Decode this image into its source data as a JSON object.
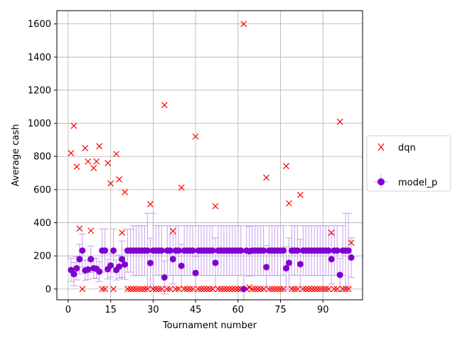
{
  "chart_data": {
    "type": "scatter",
    "xlabel": "Tournament number",
    "ylabel": "Average cash",
    "xlim": [
      -4,
      104
    ],
    "ylim": [
      -65,
      1680
    ],
    "xticks": [
      0,
      15,
      30,
      45,
      60,
      75,
      90
    ],
    "yticks": [
      0,
      200,
      400,
      600,
      800,
      1000,
      1200,
      1400,
      1600
    ],
    "grid": true,
    "legend_position": "outside-right",
    "series": [
      {
        "name": "dqn",
        "marker": "x",
        "color": "#ff0000",
        "points": [
          [
            1,
            820
          ],
          [
            2,
            985
          ],
          [
            3,
            738
          ],
          [
            4,
            365
          ],
          [
            5,
            0
          ],
          [
            6,
            850
          ],
          [
            7,
            770
          ],
          [
            8,
            352
          ],
          [
            9,
            730
          ],
          [
            10,
            770
          ],
          [
            11,
            862
          ],
          [
            12,
            0
          ],
          [
            13,
            0
          ],
          [
            14,
            760
          ],
          [
            15,
            637
          ],
          [
            16,
            0
          ],
          [
            17,
            815
          ],
          [
            18,
            662
          ],
          [
            19,
            340
          ],
          [
            20,
            585
          ],
          [
            21,
            0
          ],
          [
            22,
            0
          ],
          [
            23,
            0
          ],
          [
            24,
            0
          ],
          [
            25,
            0
          ],
          [
            26,
            0
          ],
          [
            27,
            0
          ],
          [
            28,
            0
          ],
          [
            29,
            512
          ],
          [
            30,
            0
          ],
          [
            31,
            0
          ],
          [
            32,
            0
          ],
          [
            33,
            0
          ],
          [
            34,
            1110
          ],
          [
            35,
            0
          ],
          [
            36,
            0
          ],
          [
            37,
            350
          ],
          [
            38,
            0
          ],
          [
            39,
            0
          ],
          [
            40,
            612
          ],
          [
            41,
            0
          ],
          [
            42,
            0
          ],
          [
            43,
            0
          ],
          [
            44,
            0
          ],
          [
            45,
            920
          ],
          [
            46,
            0
          ],
          [
            47,
            0
          ],
          [
            48,
            0
          ],
          [
            49,
            0
          ],
          [
            50,
            0
          ],
          [
            51,
            0
          ],
          [
            52,
            500
          ],
          [
            53,
            0
          ],
          [
            54,
            0
          ],
          [
            55,
            0
          ],
          [
            56,
            0
          ],
          [
            57,
            0
          ],
          [
            58,
            0
          ],
          [
            59,
            0
          ],
          [
            60,
            0
          ],
          [
            61,
            0
          ],
          [
            62,
            1600
          ],
          [
            63,
            0
          ],
          [
            64,
            10
          ],
          [
            65,
            0
          ],
          [
            66,
            0
          ],
          [
            67,
            0
          ],
          [
            68,
            0
          ],
          [
            69,
            0
          ],
          [
            70,
            672
          ],
          [
            71,
            0
          ],
          [
            72,
            0
          ],
          [
            73,
            0
          ],
          [
            74,
            0
          ],
          [
            75,
            0
          ],
          [
            76,
            0
          ],
          [
            77,
            742
          ],
          [
            78,
            517
          ],
          [
            79,
            0
          ],
          [
            80,
            0
          ],
          [
            81,
            0
          ],
          [
            82,
            568
          ],
          [
            83,
            0
          ],
          [
            84,
            0
          ],
          [
            85,
            0
          ],
          [
            86,
            0
          ],
          [
            87,
            0
          ],
          [
            88,
            0
          ],
          [
            89,
            0
          ],
          [
            90,
            0
          ],
          [
            91,
            0
          ],
          [
            92,
            0
          ],
          [
            93,
            340
          ],
          [
            94,
            0
          ],
          [
            95,
            0
          ],
          [
            96,
            1010
          ],
          [
            97,
            0
          ],
          [
            98,
            0
          ],
          [
            99,
            0
          ],
          [
            100,
            280
          ]
        ]
      },
      {
        "name": "model_p",
        "marker": "o",
        "color": "#8000d0",
        "errorbar_color": "#c9a0f0",
        "points": [
          [
            1,
            115,
            70
          ],
          [
            2,
            90,
            70
          ],
          [
            3,
            125,
            70
          ],
          [
            4,
            180,
            90
          ],
          [
            5,
            232,
            100
          ],
          [
            6,
            112,
            60
          ],
          [
            7,
            118,
            60
          ],
          [
            8,
            180,
            80
          ],
          [
            9,
            125,
            60
          ],
          [
            10,
            122,
            60
          ],
          [
            11,
            105,
            60
          ],
          [
            12,
            232,
            130
          ],
          [
            13,
            232,
            130
          ],
          [
            14,
            120,
            60
          ],
          [
            15,
            142,
            70
          ],
          [
            16,
            232,
            130
          ],
          [
            17,
            115,
            60
          ],
          [
            18,
            135,
            70
          ],
          [
            19,
            180,
            110
          ],
          [
            20,
            148,
            90
          ],
          [
            21,
            232,
            130
          ],
          [
            22,
            232,
            130
          ],
          [
            23,
            232,
            150
          ],
          [
            24,
            232,
            150
          ],
          [
            25,
            232,
            150
          ],
          [
            26,
            232,
            150
          ],
          [
            27,
            232,
            150
          ],
          [
            28,
            232,
            225
          ],
          [
            29,
            157,
            150
          ],
          [
            30,
            232,
            225
          ],
          [
            31,
            232,
            150
          ],
          [
            32,
            232,
            150
          ],
          [
            33,
            232,
            150
          ],
          [
            34,
            70,
            100
          ],
          [
            35,
            232,
            150
          ],
          [
            36,
            232,
            150
          ],
          [
            37,
            180,
            150
          ],
          [
            38,
            232,
            150
          ],
          [
            39,
            232,
            150
          ],
          [
            40,
            140,
            130
          ],
          [
            41,
            232,
            150
          ],
          [
            42,
            232,
            150
          ],
          [
            43,
            232,
            150
          ],
          [
            44,
            232,
            150
          ],
          [
            45,
            97,
            100
          ],
          [
            46,
            232,
            150
          ],
          [
            47,
            232,
            150
          ],
          [
            48,
            232,
            150
          ],
          [
            49,
            232,
            150
          ],
          [
            50,
            232,
            150
          ],
          [
            51,
            232,
            150
          ],
          [
            52,
            158,
            150
          ],
          [
            53,
            232,
            150
          ],
          [
            54,
            232,
            150
          ],
          [
            55,
            232,
            150
          ],
          [
            56,
            232,
            150
          ],
          [
            57,
            232,
            150
          ],
          [
            58,
            232,
            150
          ],
          [
            59,
            232,
            150
          ],
          [
            60,
            232,
            150
          ],
          [
            61,
            232,
            150
          ],
          [
            62,
            0,
            230
          ],
          [
            63,
            232,
            150
          ],
          [
            64,
            228,
            150
          ],
          [
            65,
            232,
            150
          ],
          [
            66,
            232,
            150
          ],
          [
            67,
            232,
            150
          ],
          [
            68,
            232,
            150
          ],
          [
            69,
            232,
            150
          ],
          [
            70,
            132,
            130
          ],
          [
            71,
            232,
            150
          ],
          [
            72,
            232,
            150
          ],
          [
            73,
            232,
            150
          ],
          [
            74,
            232,
            150
          ],
          [
            75,
            232,
            150
          ],
          [
            76,
            232,
            150
          ],
          [
            77,
            125,
            130
          ],
          [
            78,
            158,
            150
          ],
          [
            79,
            232,
            150
          ],
          [
            80,
            232,
            150
          ],
          [
            81,
            232,
            150
          ],
          [
            82,
            150,
            150
          ],
          [
            83,
            232,
            150
          ],
          [
            84,
            232,
            150
          ],
          [
            85,
            232,
            150
          ],
          [
            86,
            232,
            150
          ],
          [
            87,
            232,
            150
          ],
          [
            88,
            232,
            150
          ],
          [
            89,
            232,
            150
          ],
          [
            90,
            232,
            150
          ],
          [
            91,
            232,
            150
          ],
          [
            92,
            232,
            150
          ],
          [
            93,
            180,
            150
          ],
          [
            94,
            232,
            150
          ],
          [
            95,
            232,
            150
          ],
          [
            96,
            85,
            100
          ],
          [
            97,
            232,
            150
          ],
          [
            98,
            232,
            225
          ],
          [
            99,
            232,
            225
          ],
          [
            100,
            190,
            120
          ]
        ]
      }
    ]
  }
}
